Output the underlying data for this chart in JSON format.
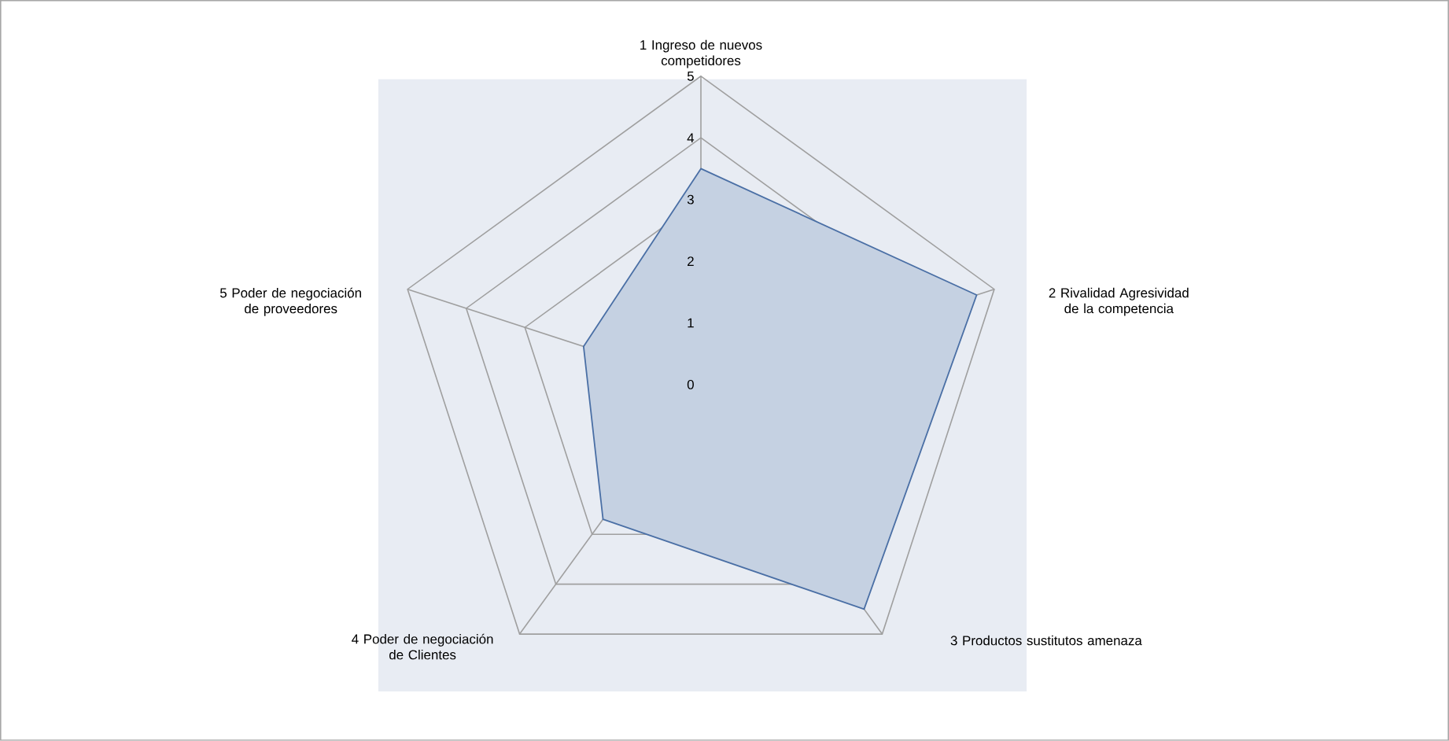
{
  "chart_data": {
    "type": "radar",
    "categories": [
      "1 Ingreso  de nuevos competidores",
      "2 Rivalidad Agresividad de la competencia",
      "3 Productos sustitutos amenaza",
      "4 Poder de negociación de Clientes",
      "5 Poder de negociación de proveedores"
    ],
    "series": [
      {
        "color": "#4a6fa5",
        "values": [
          3.5,
          4.7,
          4.5,
          2.7,
          2.0
        ]
      }
    ],
    "ylim": [
      0,
      5
    ],
    "yticks": [
      0,
      1,
      2,
      3,
      4,
      5
    ],
    "grid": true,
    "marker": "none"
  }
}
